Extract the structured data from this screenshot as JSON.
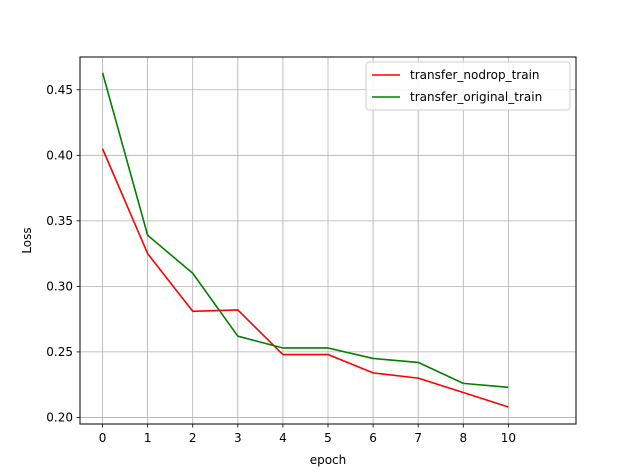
{
  "chart_data": {
    "type": "line",
    "title": "",
    "xlabel": "epoch",
    "ylabel": "Loss",
    "xlim": [
      -0.5,
      10.5
    ],
    "ylim": [
      0.195,
      0.475
    ],
    "xticks": [
      0,
      1,
      2,
      3,
      4,
      5,
      6,
      7,
      8,
      10
    ],
    "xtick_labels": [
      "0",
      "1",
      "2",
      "3",
      "4",
      "5",
      "6",
      "7",
      "8",
      "10"
    ],
    "yticks": [
      0.2,
      0.25,
      0.3,
      0.35,
      0.4,
      0.45
    ],
    "ytick_labels": [
      "0.20",
      "0.25",
      "0.30",
      "0.35",
      "0.40",
      "0.45"
    ],
    "grid": true,
    "legend_position": "top-right",
    "series": [
      {
        "name": "transfer_nodrop_train",
        "color": "#ff0000",
        "x": [
          0,
          1,
          2,
          3,
          4,
          5,
          6,
          7,
          8,
          9
        ],
        "y": [
          0.405,
          0.325,
          0.281,
          0.282,
          0.248,
          0.248,
          0.234,
          0.23,
          0.219,
          0.208
        ]
      },
      {
        "name": "transfer_original_train",
        "color": "#008000",
        "x": [
          0,
          1,
          2,
          3,
          4,
          5,
          6,
          7,
          8,
          9
        ],
        "y": [
          0.463,
          0.339,
          0.31,
          0.262,
          0.253,
          0.253,
          0.245,
          0.242,
          0.226,
          0.223
        ]
      }
    ]
  }
}
